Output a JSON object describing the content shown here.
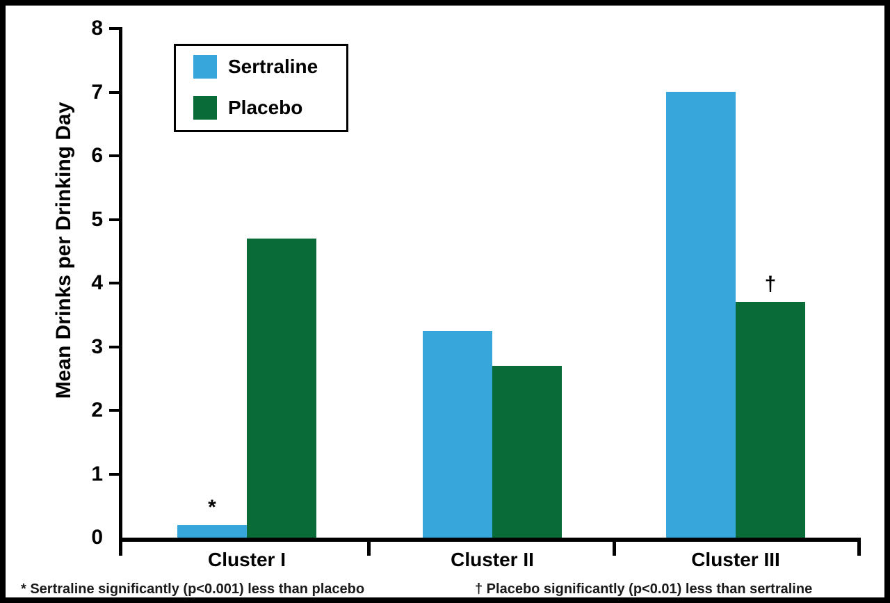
{
  "chart_data": {
    "type": "bar",
    "title": "",
    "categories": [
      "Cluster I",
      "Cluster II",
      "Cluster III"
    ],
    "series": [
      {
        "name": "Sertraline",
        "color": "#36a6db",
        "values": [
          0.2,
          3.25,
          7.0
        ]
      },
      {
        "name": "Placebo",
        "color": "#086b38",
        "values": [
          4.7,
          2.7,
          3.7
        ]
      }
    ],
    "ylabel": "Mean Drinks per Drinking Day",
    "xlabel": "",
    "ylim": [
      0,
      8
    ],
    "yticks": [
      0,
      1,
      2,
      3,
      4,
      5,
      6,
      7,
      8
    ],
    "grid": false,
    "legend_position": "top-left-inside",
    "annotations": [
      {
        "symbol": "*",
        "category_index": 0,
        "series_index": 0
      },
      {
        "symbol": "†",
        "category_index": 2,
        "series_index": 1
      }
    ]
  },
  "footnotes": {
    "left": "* Sertraline significantly (p<0.001) less than placebo",
    "right": "† Placebo significantly (p<0.01) less than sertraline"
  }
}
